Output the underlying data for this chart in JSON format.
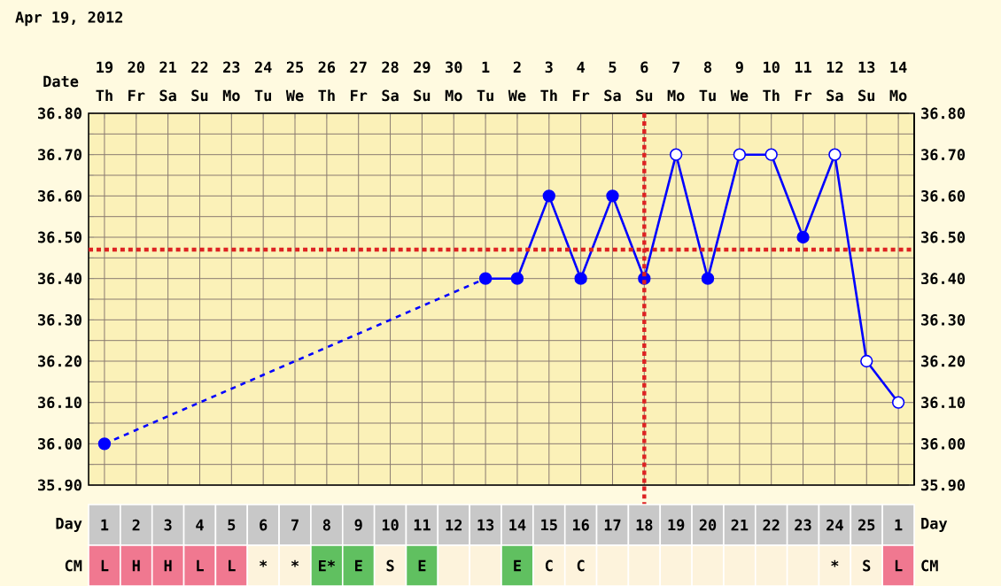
{
  "chart_data": [
    {
      "type": "line",
      "title": "Apr 19, 2012",
      "xlabel": "Date",
      "categories": [
        "19",
        "20",
        "21",
        "22",
        "23",
        "24",
        "25",
        "26",
        "27",
        "28",
        "29",
        "30",
        "1",
        "2",
        "3",
        "4",
        "5",
        "6",
        "7",
        "8",
        "9",
        "10",
        "11",
        "12",
        "13",
        "14"
      ],
      "annotations": [
        "Th",
        "Fr",
        "Sa",
        "Su",
        "Mo",
        "Tu",
        "We",
        "Th",
        "Fr",
        "Sa",
        "Su",
        "Mo",
        "Tu",
        "We",
        "Th",
        "Fr",
        "Sa",
        "Su",
        "Mo",
        "Tu",
        "We",
        "Th",
        "Fr",
        "Sa",
        "Su",
        "Mo"
      ],
      "ylim": [
        35.9,
        36.8
      ],
      "yticks": [
        {
          "value": 35.9,
          "label": "35.90"
        },
        {
          "value": 36.0,
          "label": "36.00"
        },
        {
          "value": 36.1,
          "label": "36.10"
        },
        {
          "value": 36.2,
          "label": "36.20"
        },
        {
          "value": 36.3,
          "label": "36.30"
        },
        {
          "value": 36.4,
          "label": "36.40"
        },
        {
          "value": 36.5,
          "label": "36.50"
        },
        {
          "value": 36.6,
          "label": "36.60"
        },
        {
          "value": 36.7,
          "label": "36.70"
        },
        {
          "value": 36.8,
          "label": "36.80"
        }
      ],
      "y2lim": [
        35.9,
        36.8
      ],
      "y2ticks": [
        {
          "value": 35.9,
          "label": "35.90"
        },
        {
          "value": 36.0,
          "label": "36.00"
        },
        {
          "value": 36.1,
          "label": "36.10"
        },
        {
          "value": 36.2,
          "label": "36.20"
        },
        {
          "value": 36.3,
          "label": "36.30"
        },
        {
          "value": 36.4,
          "label": "36.40"
        },
        {
          "value": 36.5,
          "label": "36.50"
        },
        {
          "value": 36.6,
          "label": "36.60"
        },
        {
          "value": 36.7,
          "label": "36.70"
        },
        {
          "value": 36.8,
          "label": "36.80"
        }
      ],
      "grid": true,
      "marker": "circle",
      "series": [
        {
          "color": "#0000ff",
          "line_style": "dashed",
          "values": [
            36.0,
            null,
            null,
            null,
            null,
            null,
            null,
            null,
            null,
            null,
            null,
            null,
            36.4,
            null,
            null,
            null,
            null,
            null,
            null,
            null,
            null,
            null,
            null,
            null,
            null,
            null
          ],
          "colors": [
            "#0000ff",
            null,
            null,
            null,
            null,
            null,
            null,
            null,
            null,
            null,
            null,
            null,
            null,
            null,
            null,
            null,
            null,
            null,
            null,
            null,
            null,
            null,
            null,
            null,
            null,
            null
          ]
        },
        {
          "color": "#0000ff",
          "line_style": "solid",
          "values": [
            null,
            null,
            null,
            null,
            null,
            null,
            null,
            null,
            null,
            null,
            null,
            null,
            36.4,
            36.4,
            36.6,
            36.4,
            36.6,
            36.4,
            36.7,
            36.4,
            36.7,
            36.7,
            36.5,
            36.7,
            36.2,
            36.1
          ],
          "colors": [
            null,
            null,
            null,
            null,
            null,
            null,
            null,
            null,
            null,
            null,
            null,
            null,
            "#0000ff",
            "#0000ff",
            "#0000ff",
            "#0000ff",
            "#0000ff",
            "#0000ff",
            "#ffffff",
            "#0000ff",
            "#ffffff",
            "#ffffff",
            "#0000ff",
            "#ffffff",
            "#ffffff",
            "#ffffff"
          ]
        }
      ],
      "ref_lines": [
        {
          "axis": "y",
          "value": 36.47,
          "color": "#dd2222",
          "line_style": "dotted"
        },
        {
          "axis": "x",
          "value": "6",
          "color": "#dd2222",
          "line_style": "dotted"
        }
      ]
    },
    {
      "type": "heatmap",
      "xlabel": "Day",
      "categories": [
        "1",
        "2",
        "3",
        "4",
        "5",
        "6",
        "7",
        "8",
        "9",
        "10",
        "11",
        "12",
        "13",
        "14",
        "15",
        "16",
        "17",
        "18",
        "19",
        "20",
        "21",
        "22",
        "23",
        "24",
        "25",
        "1"
      ],
      "y_categories": [
        "CM"
      ],
      "cells": [
        [
          null,
          null,
          null,
          null,
          null,
          null,
          null,
          null,
          null,
          null,
          null,
          null,
          null,
          null,
          null,
          null,
          null,
          null,
          null,
          null,
          null,
          null,
          null,
          null,
          null,
          null
        ]
      ],
      "cell_labels": [
        [
          "L",
          "H",
          "H",
          "L",
          "L",
          "*",
          "*",
          "E*",
          "E",
          "S",
          "E",
          null,
          null,
          "E",
          "C",
          "C",
          null,
          null,
          null,
          null,
          null,
          null,
          null,
          "*",
          "S",
          "L"
        ]
      ],
      "colors": [
        "#f07890",
        "#f07890",
        "#f07890",
        "#f07890",
        "#f07890",
        "#fdf3dc",
        "#fdf3dc",
        "#60c060",
        "#60c060",
        "#fdf3dc",
        "#60c060",
        "#fdf3dc",
        "#fdf3dc",
        "#60c060",
        "#fdf3dc",
        "#fdf3dc",
        "#fdf3dc",
        "#fdf3dc",
        "#fdf3dc",
        "#fdf3dc",
        "#fdf3dc",
        "#fdf3dc",
        "#fdf3dc",
        "#fdf3dc",
        "#fdf3dc",
        "#f07890"
      ]
    }
  ]
}
